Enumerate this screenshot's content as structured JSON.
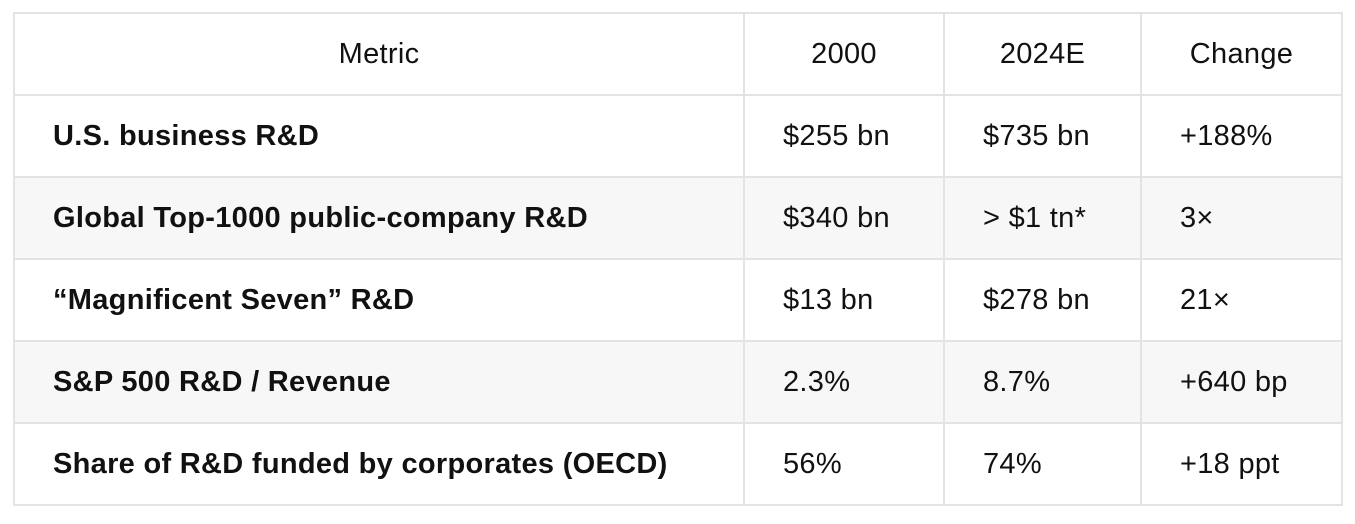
{
  "table": {
    "headers": [
      "Metric",
      "2000",
      "2024E",
      "Change"
    ],
    "rows": [
      {
        "metric": "U.S. business R&D",
        "y2000": "$255 bn",
        "y2024": "$735 bn",
        "change": "+188%"
      },
      {
        "metric": "Global Top-1000 public-company R&D",
        "y2000": "$340 bn",
        "y2024": "> $1 tn*",
        "change": "3×"
      },
      {
        "metric": "“Magnificent Seven” R&D",
        "y2000": "$13 bn",
        "y2024": "$278 bn",
        "change": "21×"
      },
      {
        "metric": "S&P 500 R&D / Revenue",
        "y2000": "2.3%",
        "y2024": "8.7%",
        "change": "+640 bp"
      },
      {
        "metric": "Share of R&D funded by corporates (OECD)",
        "y2000": "56%",
        "y2024": "74%",
        "change": "+18 ppt"
      }
    ]
  },
  "colors": {
    "border": "#e3e3e3",
    "alt_row_background": "#f7f7f7",
    "text": "#111111"
  }
}
